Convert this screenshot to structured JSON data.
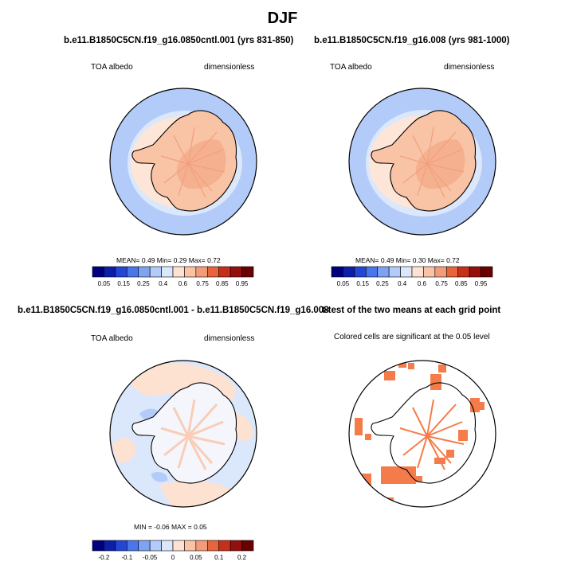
{
  "chart_data": [
    {
      "type": "heatmap",
      "title": "b.e11.B1850C5CN.f19_g16.0850cntl.001 (yrs 831-850)",
      "variable": "TOA albedo",
      "units": "dimensionless",
      "stats_label": "MEAN=  0.49  Min=  0.29  Max=  0.72",
      "mean": 0.49,
      "min": 0.29,
      "max": 0.72,
      "colorbar_labels": [
        "0.05",
        "0.15",
        "0.25",
        "0.4",
        "0.6",
        "0.75",
        "0.85",
        "0.95"
      ],
      "colorbar_colors": [
        "#00007f",
        "#0c1fa8",
        "#2346d4",
        "#4a76ec",
        "#7ea3f3",
        "#b2cbf8",
        "#dbe7fb",
        "#fde2d2",
        "#f9c3a6",
        "#f49c79",
        "#e8643a",
        "#c6301b",
        "#94100c",
        "#6b0000"
      ]
    },
    {
      "type": "heatmap",
      "title": "b.e11.B1850C5CN.f19_g16.008 (yrs 981-1000)",
      "variable": "TOA albedo",
      "units": "dimensionless",
      "stats_label": "MEAN=  0.49  Min=  0.30  Max=  0.72",
      "mean": 0.49,
      "min": 0.3,
      "max": 0.72,
      "colorbar_labels": [
        "0.05",
        "0.15",
        "0.25",
        "0.4",
        "0.6",
        "0.75",
        "0.85",
        "0.95"
      ],
      "colorbar_colors": [
        "#00007f",
        "#0c1fa8",
        "#2346d4",
        "#4a76ec",
        "#7ea3f3",
        "#b2cbf8",
        "#dbe7fb",
        "#fde2d2",
        "#f9c3a6",
        "#f49c79",
        "#e8643a",
        "#c6301b",
        "#94100c",
        "#6b0000"
      ]
    },
    {
      "type": "heatmap",
      "title": "b.e11.B1850C5CN.f19_g16.0850cntl.001 - b.e11.B1850C5CN.f19_g16.008",
      "variable": "TOA albedo",
      "units": "dimensionless",
      "stats_label": "MIN =  -0.06  MAX =  0.05",
      "min": -0.06,
      "max": 0.05,
      "colorbar_labels": [
        "-0.2",
        "-0.1",
        "-0.05",
        "0",
        "0.05",
        "0.1",
        "0.2"
      ],
      "colorbar_colors": [
        "#00007f",
        "#0c1fa8",
        "#2346d4",
        "#4a76ec",
        "#7ea3f3",
        "#b2cbf8",
        "#dbe7fb",
        "#fde2d2",
        "#f9c3a6",
        "#f49c79",
        "#e8643a",
        "#c6301b",
        "#94100c",
        "#6b0000"
      ]
    },
    {
      "type": "heatmap",
      "title": "t-test of the two means at each grid point",
      "subtitle": "Colored cells are significant at the 0.05 level",
      "significance_level": 0.05,
      "color": "#f47c4a"
    }
  ],
  "page": {
    "title": "DJF"
  }
}
